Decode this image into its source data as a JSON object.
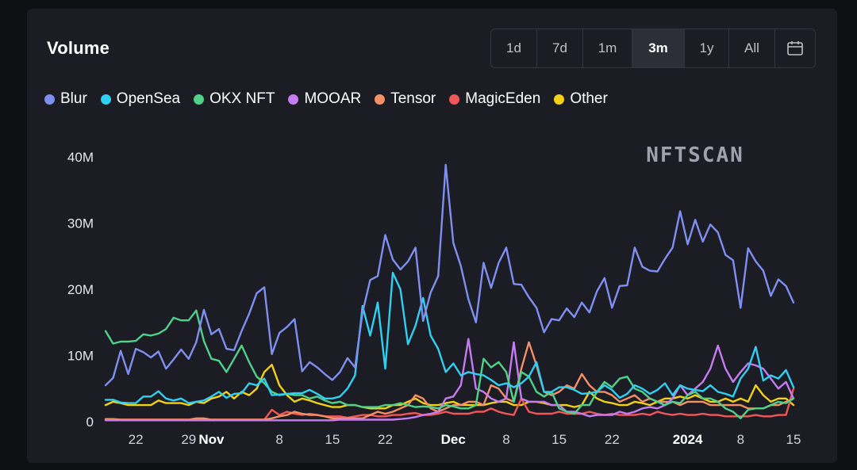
{
  "card": {
    "title": "Volume",
    "watermark": "NFTSCAN",
    "calendar_icon": "calendar-icon"
  },
  "time_ranges": [
    {
      "label": "1d",
      "active": false
    },
    {
      "label": "7d",
      "active": false
    },
    {
      "label": "1m",
      "active": false
    },
    {
      "label": "3m",
      "active": true
    },
    {
      "label": "1y",
      "active": false
    },
    {
      "label": "All",
      "active": false
    }
  ],
  "chart_data": {
    "type": "line",
    "title": "Volume",
    "xlabel": "",
    "ylabel": "",
    "ylim": [
      0,
      40000000
    ],
    "y_ticks": [
      0,
      10000000,
      20000000,
      30000000,
      40000000
    ],
    "y_tick_labels": [
      "0",
      "10M",
      "20M",
      "30M",
      "40M"
    ],
    "x_tick_labels": [
      {
        "label": "22",
        "bold": false,
        "index": 4
      },
      {
        "label": "29",
        "bold": false,
        "index": 11
      },
      {
        "label": "Nov",
        "bold": true,
        "index": 14
      },
      {
        "label": "8",
        "bold": false,
        "index": 23
      },
      {
        "label": "15",
        "bold": false,
        "index": 30
      },
      {
        "label": "22",
        "bold": false,
        "index": 37
      },
      {
        "label": "Dec",
        "bold": true,
        "index": 46
      },
      {
        "label": "8",
        "bold": false,
        "index": 53
      },
      {
        "label": "15",
        "bold": false,
        "index": 60
      },
      {
        "label": "22",
        "bold": false,
        "index": 67
      },
      {
        "label": "2024",
        "bold": true,
        "index": 77
      },
      {
        "label": "8",
        "bold": false,
        "index": 84
      },
      {
        "label": "15",
        "bold": false,
        "index": 91
      }
    ],
    "grid": false,
    "legend_position": "top-left",
    "series": [
      {
        "name": "Blur",
        "color": "#7e8ff0",
        "values": [
          5.5,
          6.6,
          10.7,
          7.2,
          11.0,
          10.5,
          9.7,
          10.6,
          8.0,
          9.4,
          10.9,
          9.5,
          12.0,
          16.9,
          13.2,
          14.0,
          11.0,
          10.8,
          13.7,
          16.3,
          19.4,
          20.3,
          10.2,
          13.4,
          14.3,
          15.5,
          7.6,
          9.0,
          8.2,
          7.2,
          6.3,
          7.5,
          9.6,
          8.2,
          16.5,
          21.4,
          22.0,
          28.2,
          24.5,
          23.0,
          24.2,
          26.3,
          15.2,
          19.5,
          22.0,
          38.8,
          27.0,
          23.5,
          18.5,
          15.0,
          24.0,
          20.2,
          24.0,
          26.3,
          20.8,
          20.7,
          18.8,
          17.2,
          13.5,
          15.5,
          15.3,
          17.1,
          15.8,
          18.0,
          16.5,
          19.7,
          21.7,
          17.2,
          20.5,
          20.6,
          26.3,
          23.4,
          22.8,
          22.7,
          24.6,
          26.3,
          31.8,
          26.8,
          30.5,
          27.2,
          29.8,
          28.6,
          25.2,
          24.4,
          17.2,
          26.2,
          24.2,
          22.8,
          19.0,
          21.5,
          20.5,
          18.0
        ]
      },
      {
        "name": "OpenSea",
        "color": "#2fd0f2",
        "values": [
          3.3,
          3.3,
          2.9,
          2.8,
          2.8,
          3.8,
          3.8,
          4.6,
          3.5,
          3.2,
          3.5,
          2.8,
          3.0,
          3.2,
          3.8,
          4.5,
          3.6,
          4.2,
          4.3,
          5.8,
          5.5,
          6.5,
          4.0,
          4.1,
          4.2,
          4.3,
          4.3,
          4.8,
          4.2,
          3.5,
          3.5,
          3.8,
          5.0,
          7.0,
          17.5,
          13.0,
          18.0,
          8.0,
          22.5,
          20.0,
          11.7,
          14.5,
          18.7,
          13.0,
          11.0,
          7.5,
          8.8,
          7.0,
          7.5,
          7.2,
          7.0,
          6.3,
          5.5,
          5.8,
          5.2,
          5.8,
          6.8,
          9.0,
          4.5,
          4.5,
          5.2,
          5.2,
          4.8,
          4.2,
          4.3,
          4.5,
          5.5,
          4.8,
          3.6,
          4.2,
          5.5,
          5.0,
          4.2,
          4.8,
          5.8,
          4.0,
          5.5,
          5.0,
          4.8,
          4.6,
          5.5,
          4.5,
          4.2,
          3.8,
          6.5,
          8.0,
          11.3,
          6.2,
          7.0,
          6.5,
          7.8,
          5.2
        ]
      },
      {
        "name": "OKX NFT",
        "color": "#4fd18a",
        "values": [
          13.7,
          11.8,
          12.1,
          12.1,
          12.2,
          13.2,
          13.0,
          13.3,
          14.0,
          15.7,
          15.3,
          15.3,
          16.8,
          12.2,
          9.5,
          9.2,
          7.5,
          9.5,
          11.5,
          9.0,
          6.8,
          5.8,
          4.5,
          4.0,
          4.2,
          4.0,
          4.0,
          3.5,
          3.8,
          3.2,
          2.8,
          3.0,
          2.5,
          2.5,
          2.2,
          2.2,
          2.2,
          2.5,
          2.5,
          2.8,
          2.5,
          2.2,
          2.3,
          2.2,
          2.0,
          2.5,
          2.3,
          2.0,
          2.0,
          2.5,
          9.5,
          8.2,
          9.0,
          7.5,
          3.0,
          7.5,
          6.8,
          4.5,
          3.8,
          4.5,
          2.0,
          1.5,
          1.2,
          2.5,
          2.5,
          4.5,
          6.0,
          5.2,
          6.5,
          6.8,
          5.0,
          4.5,
          3.5,
          3.0,
          2.5,
          3.0,
          2.8,
          4.0,
          4.5,
          3.5,
          3.5,
          3.0,
          2.0,
          1.5,
          0.5,
          1.8,
          2.0,
          2.0,
          2.5,
          3.0,
          2.8,
          3.5
        ]
      },
      {
        "name": "MOOAR",
        "color": "#c57cf0",
        "values": [
          0.2,
          0.2,
          0.2,
          0.2,
          0.2,
          0.2,
          0.2,
          0.2,
          0.2,
          0.2,
          0.2,
          0.2,
          0.2,
          0.2,
          0.2,
          0.2,
          0.2,
          0.2,
          0.2,
          0.2,
          0.2,
          0.2,
          0.2,
          0.2,
          0.2,
          0.2,
          0.2,
          0.2,
          0.2,
          0.2,
          0.2,
          0.3,
          0.3,
          0.3,
          0.3,
          0.3,
          0.3,
          0.3,
          0.3,
          0.4,
          0.5,
          0.7,
          1.0,
          1.2,
          1.5,
          3.5,
          3.8,
          5.5,
          12.5,
          5.0,
          4.5,
          3.5,
          3.0,
          3.5,
          12.0,
          3.5,
          3.0,
          3.0,
          3.0,
          2.5,
          2.5,
          1.5,
          1.5,
          1.2,
          0.8,
          1.0,
          1.0,
          1.0,
          1.5,
          1.2,
          1.5,
          2.0,
          2.2,
          2.0,
          2.5,
          3.5,
          5.5,
          4.0,
          5.0,
          6.0,
          8.0,
          11.5,
          8.0,
          6.0,
          7.5,
          8.8,
          8.5,
          8.0,
          6.5,
          5.0,
          6.0,
          3.5
        ]
      },
      {
        "name": "Tensor",
        "color": "#f59066",
        "values": [
          0.4,
          0.4,
          0.3,
          0.3,
          0.3,
          0.3,
          0.3,
          0.3,
          0.3,
          0.3,
          0.3,
          0.3,
          0.5,
          0.5,
          0.3,
          0.3,
          0.3,
          0.3,
          0.3,
          0.3,
          0.3,
          0.3,
          0.5,
          0.8,
          1.0,
          1.5,
          1.2,
          1.0,
          1.0,
          0.8,
          0.5,
          0.5,
          0.5,
          0.5,
          0.5,
          1.0,
          1.5,
          1.2,
          1.5,
          2.0,
          2.5,
          4.0,
          3.5,
          2.0,
          1.5,
          2.0,
          2.5,
          2.5,
          3.0,
          3.0,
          2.5,
          5.5,
          5.0,
          3.5,
          3.0,
          8.0,
          12.0,
          8.5,
          4.5,
          4.0,
          4.5,
          5.5,
          5.0,
          7.2,
          5.5,
          4.5,
          4.5,
          4.0,
          3.0,
          3.5,
          4.0,
          3.0,
          3.5,
          3.0,
          3.0,
          3.0,
          2.5,
          3.0,
          3.0,
          3.0,
          2.5,
          2.5,
          2.5,
          2.5,
          2.5,
          2.0,
          2.0,
          2.0,
          2.5,
          2.5,
          3.0,
          3.5
        ]
      },
      {
        "name": "MagicEden",
        "color": "#f25757",
        "values": [
          0.3,
          0.3,
          0.3,
          0.3,
          0.3,
          0.3,
          0.3,
          0.3,
          0.3,
          0.3,
          0.3,
          0.3,
          0.3,
          0.4,
          0.3,
          0.3,
          0.3,
          0.3,
          0.3,
          0.3,
          0.3,
          0.3,
          1.8,
          1.0,
          1.5,
          1.2,
          1.0,
          1.2,
          1.0,
          0.8,
          0.8,
          0.8,
          0.6,
          0.8,
          1.0,
          1.0,
          0.8,
          0.8,
          1.0,
          1.0,
          1.2,
          1.3,
          1.0,
          1.0,
          1.2,
          1.5,
          1.2,
          1.2,
          1.2,
          1.5,
          1.5,
          2.0,
          1.5,
          1.2,
          1.0,
          3.5,
          1.5,
          1.2,
          1.2,
          1.2,
          1.5,
          1.2,
          1.2,
          1.2,
          1.5,
          1.2,
          1.0,
          1.2,
          1.0,
          1.0,
          1.0,
          1.2,
          1.0,
          1.5,
          1.2,
          1.0,
          1.2,
          1.0,
          1.0,
          1.2,
          1.0,
          1.0,
          0.8,
          0.8,
          0.8,
          0.8,
          1.0,
          0.8,
          0.8,
          1.0,
          1.0,
          5.0
        ]
      },
      {
        "name": "Other",
        "color": "#f2d116",
        "values": [
          2.5,
          3.0,
          2.8,
          2.5,
          2.5,
          2.5,
          2.5,
          3.2,
          2.8,
          2.8,
          2.8,
          2.5,
          3.0,
          2.8,
          3.5,
          3.8,
          4.5,
          3.5,
          4.5,
          4.0,
          5.0,
          7.5,
          8.6,
          5.5,
          4.0,
          3.0,
          3.5,
          3.2,
          2.8,
          2.5,
          2.2,
          2.2,
          2.5,
          2.5,
          2.2,
          2.0,
          2.0,
          2.0,
          2.5,
          2.5,
          3.0,
          3.5,
          2.8,
          2.5,
          2.5,
          2.8,
          3.0,
          2.5,
          2.5,
          2.5,
          2.5,
          2.8,
          3.0,
          3.0,
          2.5,
          2.5,
          3.0,
          3.0,
          2.8,
          2.5,
          2.5,
          2.5,
          2.2,
          2.5,
          4.5,
          3.5,
          3.0,
          2.8,
          2.5,
          2.5,
          3.0,
          2.8,
          2.5,
          3.0,
          3.5,
          3.5,
          3.8,
          3.5,
          4.0,
          3.5,
          3.0,
          3.0,
          3.5,
          3.0,
          3.5,
          3.0,
          5.5,
          4.0,
          3.0,
          3.5,
          3.5,
          2.5
        ]
      }
    ]
  }
}
